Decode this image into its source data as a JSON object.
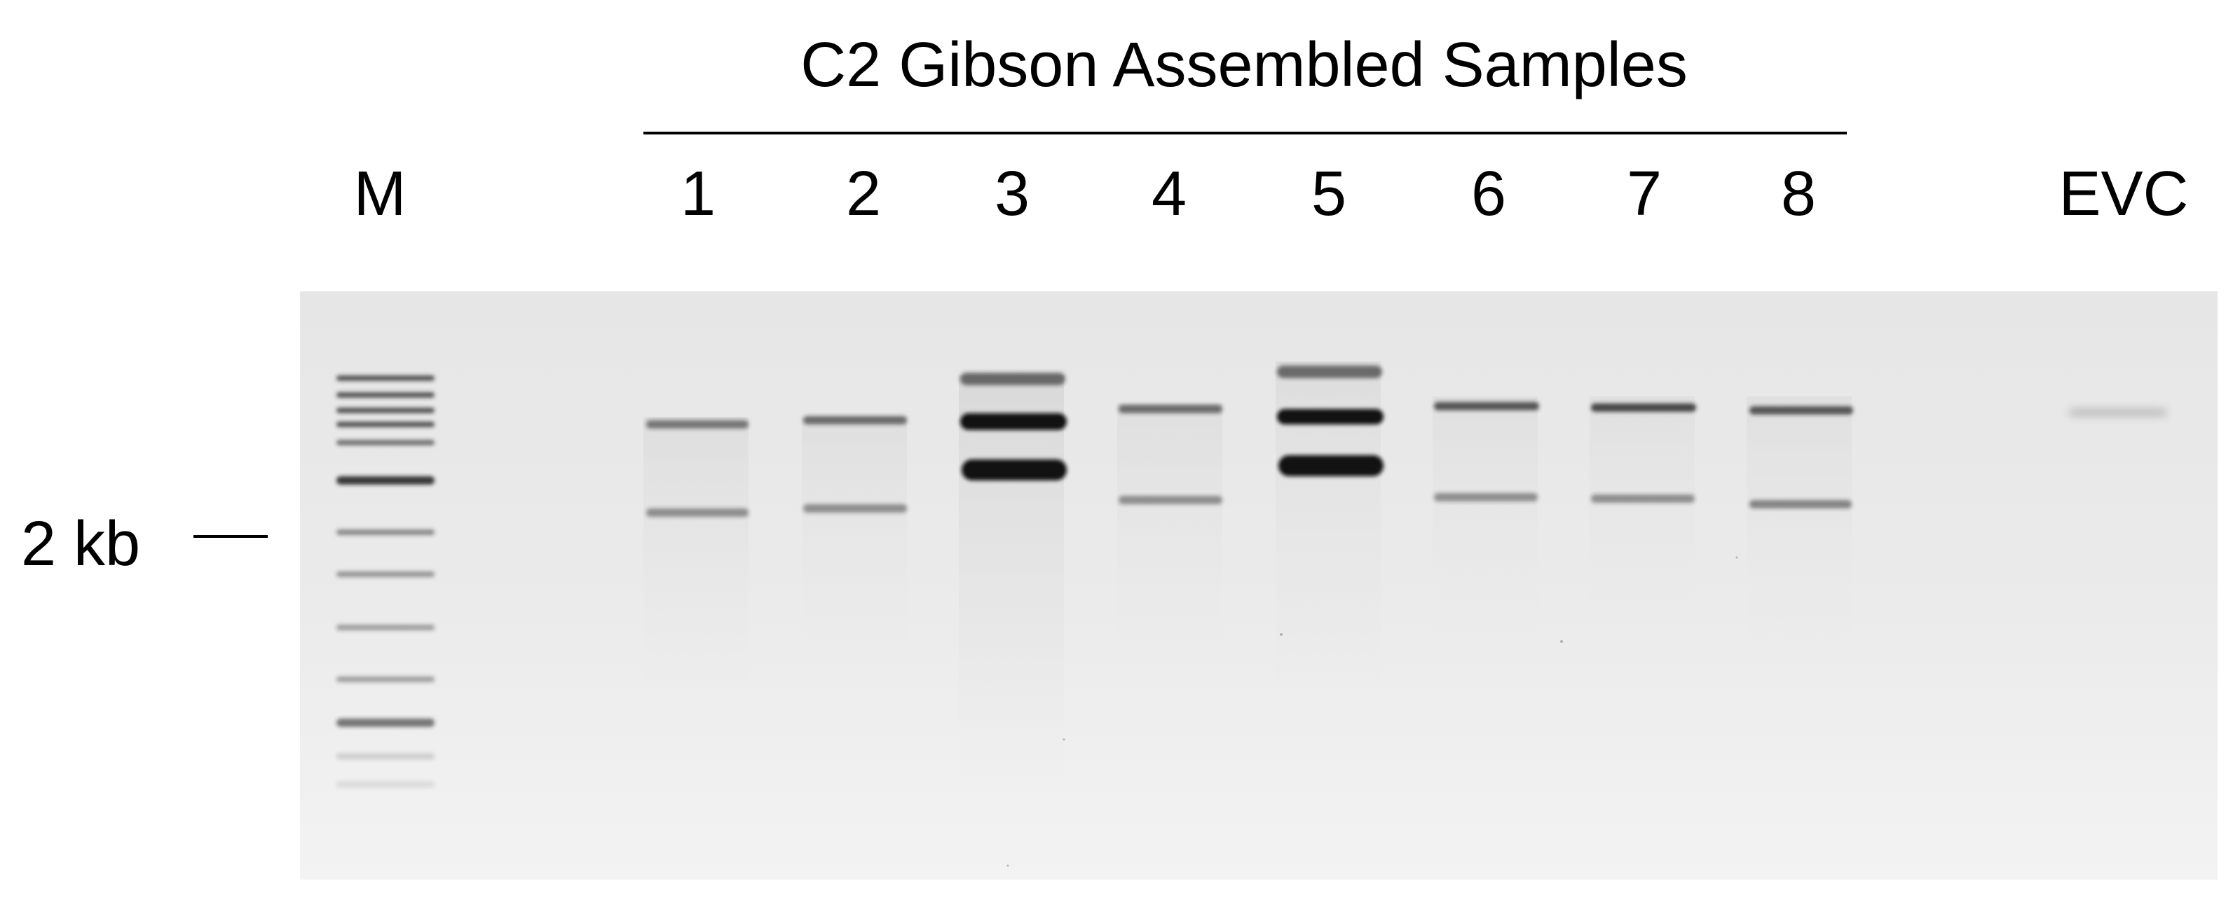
{
  "figure": {
    "title": "C2 Gibson Assembled Samples",
    "marker_lane_label": "M",
    "sample_lane_labels": [
      "1",
      "2",
      "3",
      "4",
      "5",
      "6",
      "7",
      "8"
    ],
    "control_lane_label": "EVC",
    "size_marker_label": "2 kb"
  },
  "gel": {
    "background_color": "#e9e9e9",
    "band_color": "#1a1a1a"
  }
}
